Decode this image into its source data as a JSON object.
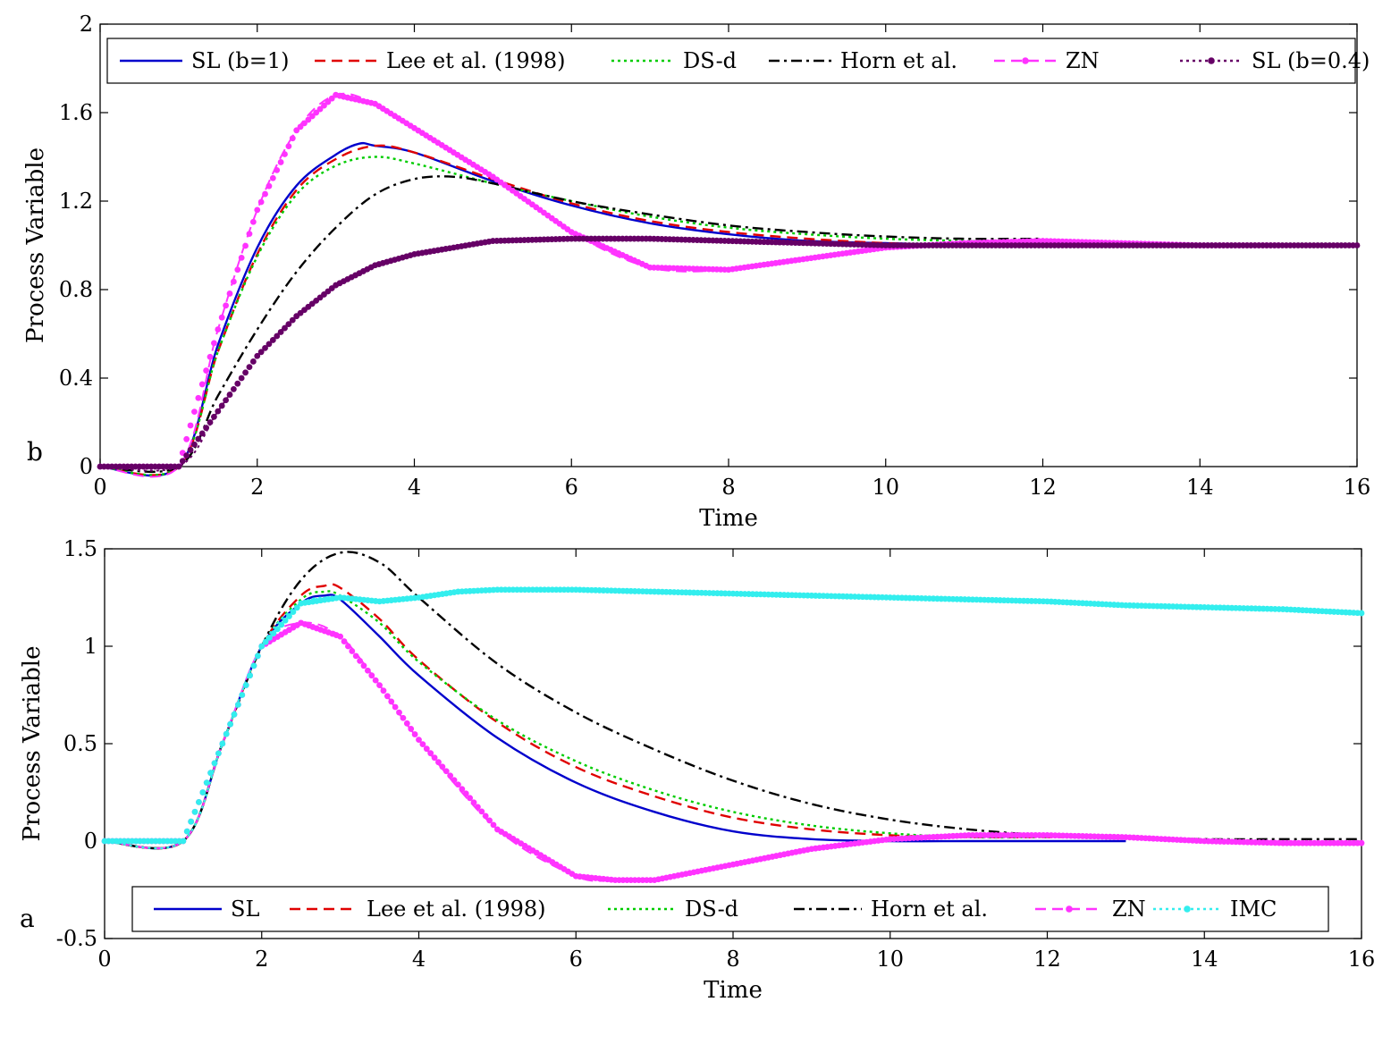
{
  "chart_data": [
    {
      "type": "line",
      "panel_label": "b",
      "xlabel": "Time",
      "ylabel": "Process Variable",
      "xlim": [
        0,
        16
      ],
      "ylim": [
        0,
        2
      ],
      "xticks": [
        "0",
        "2",
        "4",
        "6",
        "8",
        "10",
        "12",
        "14",
        "16"
      ],
      "yticks": [
        "0",
        "0.4",
        "0.8",
        "1.2",
        "1.6",
        "2"
      ],
      "legend_position": "top",
      "series": [
        {
          "name": "SL (b=1)",
          "color": "#0000cc",
          "style": "solid",
          "marker": "none",
          "end_x": 16,
          "x": [
            0,
            1,
            1.5,
            2,
            2.5,
            3,
            3.3,
            3.5,
            4,
            5,
            6,
            7,
            8,
            9,
            10,
            11,
            12,
            13,
            14,
            15,
            16
          ],
          "y": [
            0,
            0,
            0.55,
            0.99,
            1.27,
            1.41,
            1.46,
            1.45,
            1.42,
            1.29,
            1.18,
            1.1,
            1.05,
            1.02,
            1.01,
            1.0,
            1.0,
            1.0,
            1.0,
            1.0,
            1.0
          ]
        },
        {
          "name": "Lee et al. (1998)",
          "color": "#e00000",
          "style": "dashed",
          "marker": "none",
          "end_x": 16,
          "x": [
            0,
            1,
            1.5,
            2,
            2.5,
            3,
            3.5,
            4,
            5,
            6,
            7,
            8,
            9,
            10,
            11,
            12,
            13,
            14,
            15,
            16
          ],
          "y": [
            0,
            0,
            0.52,
            0.96,
            1.25,
            1.39,
            1.45,
            1.42,
            1.3,
            1.19,
            1.11,
            1.06,
            1.03,
            1.01,
            1.0,
            1.0,
            1.0,
            1.0,
            1.0,
            1.0
          ]
        },
        {
          "name": "DS-d",
          "color": "#00cc00",
          "style": "dotted",
          "marker": "none",
          "end_x": 11.5,
          "x": [
            0,
            1,
            1.5,
            2,
            2.5,
            3,
            3.5,
            4,
            5,
            6,
            7,
            8,
            9,
            10,
            11,
            11.5
          ],
          "y": [
            0,
            0,
            0.52,
            0.95,
            1.23,
            1.36,
            1.4,
            1.37,
            1.28,
            1.2,
            1.13,
            1.08,
            1.05,
            1.03,
            1.02,
            1.02
          ]
        },
        {
          "name": "Horn et al.",
          "color": "#000000",
          "style": "dashdot",
          "marker": "none",
          "end_x": 12,
          "x": [
            0,
            1,
            1.5,
            2,
            2.5,
            3,
            3.5,
            4,
            4.5,
            5,
            6,
            7,
            8,
            9,
            10,
            11,
            12
          ],
          "y": [
            0,
            0,
            0.32,
            0.62,
            0.88,
            1.08,
            1.23,
            1.3,
            1.31,
            1.28,
            1.2,
            1.14,
            1.09,
            1.06,
            1.04,
            1.03,
            1.03
          ]
        },
        {
          "name": "ZN",
          "color": "#ff33ff",
          "style": "dashed",
          "marker": "dot",
          "end_x": 15,
          "x": [
            0,
            1,
            1.5,
            2,
            2.5,
            3,
            3.5,
            4,
            5,
            6,
            7,
            8,
            9,
            10,
            11,
            12,
            13,
            14,
            15
          ],
          "y": [
            0,
            0,
            0.62,
            1.16,
            1.52,
            1.68,
            1.64,
            1.53,
            1.31,
            1.06,
            0.9,
            0.89,
            0.94,
            0.99,
            1.01,
            1.02,
            1.01,
            1.0,
            1.0
          ]
        },
        {
          "name": "SL (b=0.4)",
          "color": "#660066",
          "style": "dotted",
          "marker": "dot",
          "end_x": 16,
          "x": [
            0,
            1,
            1.5,
            2,
            2.5,
            3,
            3.5,
            4,
            5,
            6,
            7,
            8,
            9,
            10,
            11,
            12,
            13,
            14,
            15,
            16
          ],
          "y": [
            0,
            0,
            0.25,
            0.5,
            0.68,
            0.82,
            0.91,
            0.96,
            1.02,
            1.03,
            1.03,
            1.02,
            1.01,
            1.0,
            1.0,
            1.0,
            1.0,
            1.0,
            1.0,
            1.0
          ]
        }
      ]
    },
    {
      "type": "line",
      "panel_label": "a",
      "xlabel": "Time",
      "ylabel": "Process Variable",
      "xlim": [
        0,
        16
      ],
      "ylim": [
        -0.5,
        1.5
      ],
      "xticks": [
        "0",
        "2",
        "4",
        "6",
        "8",
        "10",
        "12",
        "14",
        "16"
      ],
      "yticks": [
        "-0.5",
        "0",
        "0.5",
        "1",
        "1.5"
      ],
      "legend_position": "bottom",
      "series": [
        {
          "name": "SL",
          "color": "#0000cc",
          "style": "solid",
          "marker": "none",
          "end_x": 13,
          "x": [
            0,
            1,
            1.5,
            2,
            2.5,
            2.8,
            3,
            3.5,
            4,
            5,
            6,
            7,
            8,
            9,
            10,
            11,
            12,
            13
          ],
          "y": [
            0,
            0,
            0.5,
            1.0,
            1.22,
            1.26,
            1.24,
            1.05,
            0.85,
            0.53,
            0.3,
            0.15,
            0.05,
            0.01,
            0.0,
            0.0,
            0.0,
            0.0
          ]
        },
        {
          "name": "Lee et al. (1998)",
          "color": "#e00000",
          "style": "dashed",
          "marker": "none",
          "end_x": 12.2,
          "x": [
            0,
            1,
            1.5,
            2,
            2.5,
            2.8,
            3,
            3.5,
            4,
            5,
            6,
            7,
            8,
            9,
            10,
            11,
            12.2
          ],
          "y": [
            0,
            0,
            0.5,
            1.0,
            1.26,
            1.31,
            1.3,
            1.14,
            0.93,
            0.61,
            0.38,
            0.23,
            0.12,
            0.06,
            0.03,
            0.02,
            0.02
          ]
        },
        {
          "name": "DS-d",
          "color": "#00cc00",
          "style": "dotted",
          "marker": "none",
          "end_x": 12,
          "x": [
            0,
            1,
            1.5,
            2,
            2.5,
            2.8,
            3,
            3.5,
            4,
            5,
            6,
            7,
            8,
            9,
            10,
            11,
            12
          ],
          "y": [
            0,
            0,
            0.5,
            1.0,
            1.24,
            1.28,
            1.26,
            1.12,
            0.92,
            0.62,
            0.41,
            0.26,
            0.15,
            0.08,
            0.04,
            0.02,
            0.02
          ]
        },
        {
          "name": "Horn et al.",
          "color": "#000000",
          "style": "dashdot",
          "marker": "none",
          "end_x": 16,
          "x": [
            0,
            1,
            1.5,
            2,
            2.5,
            3,
            3.5,
            4,
            5,
            6,
            7,
            8,
            9,
            10,
            11,
            12,
            13,
            14,
            15,
            16
          ],
          "y": [
            0,
            0,
            0.5,
            1.0,
            1.34,
            1.48,
            1.43,
            1.25,
            0.91,
            0.66,
            0.47,
            0.31,
            0.19,
            0.11,
            0.06,
            0.03,
            0.02,
            0.01,
            0.01,
            0.01
          ]
        },
        {
          "name": "ZN",
          "color": "#ff33ff",
          "style": "dashed",
          "marker": "dot",
          "end_x": 16,
          "x": [
            0,
            1,
            1.5,
            2,
            2.5,
            3,
            3.5,
            4,
            5,
            6,
            6.5,
            7,
            8,
            9,
            10,
            11,
            12,
            13,
            14,
            15,
            16
          ],
          "y": [
            0,
            0,
            0.5,
            1.0,
            1.12,
            1.05,
            0.8,
            0.52,
            0.06,
            -0.18,
            -0.2,
            -0.2,
            -0.12,
            -0.04,
            0.01,
            0.03,
            0.03,
            0.02,
            0.0,
            -0.01,
            -0.01
          ]
        },
        {
          "name": "IMC",
          "color": "#33eeee",
          "style": "dotted",
          "marker": "dot",
          "end_x": 16,
          "x": [
            0,
            1,
            1.5,
            2,
            2.5,
            3,
            3.5,
            4,
            4.5,
            5,
            6,
            7,
            8,
            9,
            10,
            11,
            12,
            13,
            14,
            15,
            16
          ],
          "y": [
            0,
            0,
            0.5,
            1.0,
            1.22,
            1.25,
            1.23,
            1.25,
            1.28,
            1.29,
            1.29,
            1.28,
            1.27,
            1.26,
            1.25,
            1.24,
            1.23,
            1.21,
            1.2,
            1.19,
            1.17
          ]
        }
      ]
    }
  ]
}
